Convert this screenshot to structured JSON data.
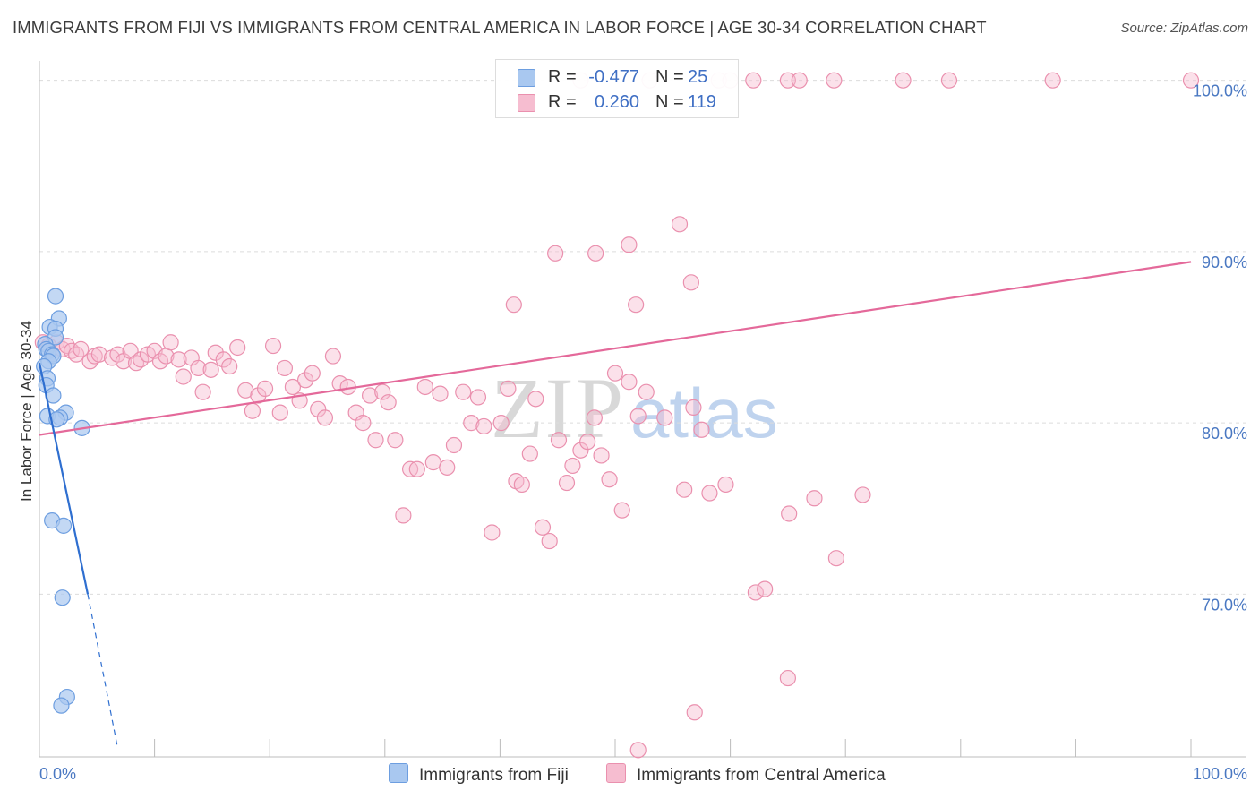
{
  "title": "IMMIGRANTS FROM FIJI VS IMMIGRANTS FROM CENTRAL AMERICA IN LABOR FORCE | AGE 30-34 CORRELATION CHART",
  "source": "Source: ZipAtlas.com",
  "watermark": {
    "zip": "ZIP",
    "atlas": "atlas"
  },
  "legend_top": {
    "rows": [
      {
        "r_label": "R =",
        "r_value": "-0.477",
        "n_label": "N =",
        "n_value": "25"
      },
      {
        "r_label": "R =",
        "r_value": "0.260",
        "n_label": "N =",
        "n_value": "119"
      }
    ]
  },
  "legend_bottom": {
    "fiji": "Immigrants from Fiji",
    "central_america": "Immigrants from Central America"
  },
  "colors": {
    "fiji_fill": "#a9c8f0",
    "fiji_stroke": "#6d9ee0",
    "fiji_line": "#2f6fd0",
    "ca_fill": "#f6bdd0",
    "ca_stroke": "#ea90ae",
    "ca_line": "#e4699a",
    "grid": "#dcdcdc",
    "tick_text": "#4a78c2"
  },
  "chart_data": {
    "type": "scatter",
    "title": "IMMIGRANTS FROM FIJI VS IMMIGRANTS FROM CENTRAL AMERICA IN LABOR FORCE | AGE 30-34 CORRELATION CHART",
    "xlabel": "",
    "ylabel": "In Labor Force | Age 30-34",
    "xlim": [
      0,
      100
    ],
    "ylim": [
      60.5,
      101.5
    ],
    "x_tick_labels": [
      "0.0%",
      "100.0%"
    ],
    "y_ticks": [
      70,
      80,
      90,
      100
    ],
    "y_tick_labels": [
      "70.0%",
      "80.0%",
      "90.0%",
      "100.0%"
    ],
    "grid": true,
    "legend_position": "bottom",
    "series": [
      {
        "name": "Immigrants from Fiji",
        "R": -0.477,
        "N": 25,
        "trend": {
          "x0": 0.0,
          "y0": 83.5,
          "x1": 4.2,
          "y1": 70.0,
          "dash_x1": 6.8,
          "dash_y1": 61.0
        },
        "points": [
          [
            1.4,
            87.4
          ],
          [
            1.7,
            86.1
          ],
          [
            0.9,
            85.6
          ],
          [
            1.4,
            85.5
          ],
          [
            1.4,
            85.0
          ],
          [
            0.5,
            84.6
          ],
          [
            0.6,
            84.3
          ],
          [
            0.8,
            84.2
          ],
          [
            1.1,
            84.0
          ],
          [
            1.2,
            83.9
          ],
          [
            0.8,
            83.6
          ],
          [
            0.4,
            83.3
          ],
          [
            0.7,
            82.6
          ],
          [
            0.6,
            82.2
          ],
          [
            1.2,
            81.6
          ],
          [
            2.3,
            80.6
          ],
          [
            0.7,
            80.4
          ],
          [
            1.8,
            80.3
          ],
          [
            1.5,
            80.2
          ],
          [
            3.7,
            79.7
          ],
          [
            1.1,
            74.3
          ],
          [
            2.1,
            74.0
          ],
          [
            2.0,
            69.8
          ],
          [
            2.4,
            64.0
          ],
          [
            1.9,
            63.5
          ]
        ]
      },
      {
        "name": "Immigrants from Central America",
        "R": 0.26,
        "N": 119,
        "trend": {
          "x0": 0.0,
          "y0": 79.3,
          "x1": 100.0,
          "y1": 89.4
        },
        "points": [
          [
            47.0,
            100.0
          ],
          [
            53.0,
            100.0
          ],
          [
            59.0,
            100.0
          ],
          [
            60.0,
            100.0
          ],
          [
            62.0,
            100.0
          ],
          [
            65.0,
            100.0
          ],
          [
            66.0,
            100.0
          ],
          [
            69.0,
            100.0
          ],
          [
            75.0,
            100.0
          ],
          [
            79.0,
            100.0
          ],
          [
            88.0,
            100.0
          ],
          [
            100.0,
            100.0
          ],
          [
            55.6,
            91.6
          ],
          [
            51.2,
            90.4
          ],
          [
            44.8,
            89.9
          ],
          [
            48.3,
            89.9
          ],
          [
            56.6,
            88.2
          ],
          [
            41.2,
            86.9
          ],
          [
            51.8,
            86.9
          ],
          [
            0.3,
            84.7
          ],
          [
            0.8,
            84.5
          ],
          [
            1.5,
            84.7
          ],
          [
            2.0,
            84.3
          ],
          [
            2.4,
            84.5
          ],
          [
            2.8,
            84.2
          ],
          [
            3.2,
            84.0
          ],
          [
            3.6,
            84.3
          ],
          [
            4.4,
            83.6
          ],
          [
            4.8,
            83.9
          ],
          [
            5.2,
            84.0
          ],
          [
            6.3,
            83.8
          ],
          [
            6.8,
            84.0
          ],
          [
            7.3,
            83.6
          ],
          [
            7.9,
            84.2
          ],
          [
            8.4,
            83.5
          ],
          [
            8.8,
            83.7
          ],
          [
            9.4,
            84.0
          ],
          [
            10.0,
            84.2
          ],
          [
            10.5,
            83.6
          ],
          [
            11.0,
            83.9
          ],
          [
            11.4,
            84.7
          ],
          [
            12.1,
            83.7
          ],
          [
            12.5,
            82.7
          ],
          [
            13.2,
            83.8
          ],
          [
            13.8,
            83.2
          ],
          [
            14.2,
            81.8
          ],
          [
            14.9,
            83.1
          ],
          [
            15.3,
            84.1
          ],
          [
            16.0,
            83.7
          ],
          [
            16.5,
            83.3
          ],
          [
            17.2,
            84.4
          ],
          [
            17.9,
            81.9
          ],
          [
            18.5,
            80.7
          ],
          [
            19.0,
            81.6
          ],
          [
            19.6,
            82.0
          ],
          [
            20.3,
            84.5
          ],
          [
            20.9,
            80.6
          ],
          [
            21.3,
            83.2
          ],
          [
            22.0,
            82.1
          ],
          [
            22.6,
            81.3
          ],
          [
            23.1,
            82.5
          ],
          [
            23.7,
            82.9
          ],
          [
            24.2,
            80.8
          ],
          [
            24.8,
            80.3
          ],
          [
            25.5,
            83.9
          ],
          [
            26.1,
            82.3
          ],
          [
            26.8,
            82.1
          ],
          [
            27.5,
            80.6
          ],
          [
            28.1,
            80.0
          ],
          [
            28.7,
            81.6
          ],
          [
            29.2,
            79.0
          ],
          [
            29.8,
            81.8
          ],
          [
            30.3,
            81.2
          ],
          [
            30.9,
            79.0
          ],
          [
            31.6,
            74.6
          ],
          [
            32.2,
            77.3
          ],
          [
            32.8,
            77.3
          ],
          [
            33.5,
            82.1
          ],
          [
            34.2,
            77.7
          ],
          [
            34.8,
            81.7
          ],
          [
            35.4,
            77.4
          ],
          [
            36.0,
            78.7
          ],
          [
            36.8,
            81.8
          ],
          [
            37.5,
            80.0
          ],
          [
            38.1,
            81.5
          ],
          [
            38.6,
            79.8
          ],
          [
            39.3,
            73.6
          ],
          [
            40.1,
            80.0
          ],
          [
            40.7,
            82.0
          ],
          [
            41.4,
            76.6
          ],
          [
            41.9,
            76.4
          ],
          [
            42.6,
            78.2
          ],
          [
            43.1,
            81.4
          ],
          [
            43.7,
            73.9
          ],
          [
            44.3,
            73.1
          ],
          [
            45.1,
            79.0
          ],
          [
            45.8,
            76.5
          ],
          [
            46.3,
            77.5
          ],
          [
            47.0,
            78.4
          ],
          [
            47.6,
            78.9
          ],
          [
            48.2,
            80.3
          ],
          [
            48.8,
            78.1
          ],
          [
            49.5,
            76.7
          ],
          [
            50.0,
            82.9
          ],
          [
            50.6,
            74.9
          ],
          [
            51.2,
            82.4
          ],
          [
            52.0,
            80.4
          ],
          [
            52.7,
            81.8
          ],
          [
            54.3,
            80.3
          ],
          [
            56.0,
            76.1
          ],
          [
            56.8,
            80.9
          ],
          [
            57.5,
            79.6
          ],
          [
            58.2,
            75.9
          ],
          [
            59.6,
            76.4
          ],
          [
            62.2,
            70.1
          ],
          [
            63.0,
            70.3
          ],
          [
            65.1,
            74.7
          ],
          [
            67.3,
            75.6
          ],
          [
            69.2,
            72.1
          ],
          [
            71.5,
            75.8
          ],
          [
            65.0,
            65.1
          ],
          [
            56.9,
            63.1
          ],
          [
            52.0,
            60.9
          ]
        ]
      }
    ]
  }
}
